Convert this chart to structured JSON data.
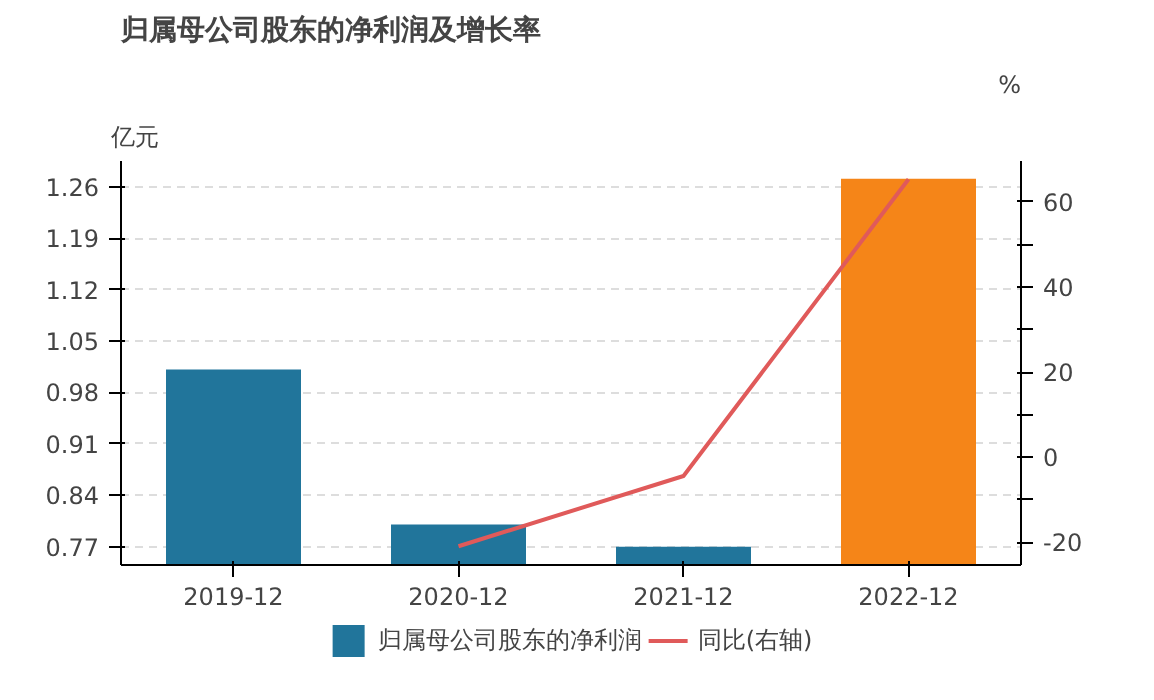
{
  "chart_data": {
    "type": "bar",
    "title": "归属母公司股东的净利润及增长率",
    "ylabel": "亿元",
    "y2label": "%",
    "categories": [
      "2019-12",
      "2020-12",
      "2021-12",
      "2022-12"
    ],
    "series": [
      {
        "name": "归属母公司股东的净利润",
        "type": "bar",
        "color": "#21759b",
        "colors": [
          "#21759b",
          "#21759b",
          "#21759b",
          "#f58518"
        ],
        "values": [
          1.011,
          0.8,
          0.77,
          1.271
        ]
      },
      {
        "name": "同比(右轴)",
        "type": "line",
        "axis": "y2",
        "color": "#e05a5a",
        "values": [
          null,
          -20.9,
          -4.4,
          65.3
        ]
      }
    ],
    "ylim": [
      0.745,
      1.295
    ],
    "yticks": [
      0.77,
      0.84,
      0.91,
      0.98,
      1.05,
      1.12,
      1.19,
      1.26
    ],
    "y2lim": [
      -25.3,
      69.6
    ],
    "y2ticks": [
      -20,
      {
        "value": -10,
        "label": null
      },
      0,
      {
        "value": 10,
        "label": null
      },
      20,
      {
        "value": 30,
        "label": null
      },
      40,
      {
        "value": 50,
        "label": null
      },
      60
    ],
    "grid": "y",
    "legend": "bottom"
  }
}
